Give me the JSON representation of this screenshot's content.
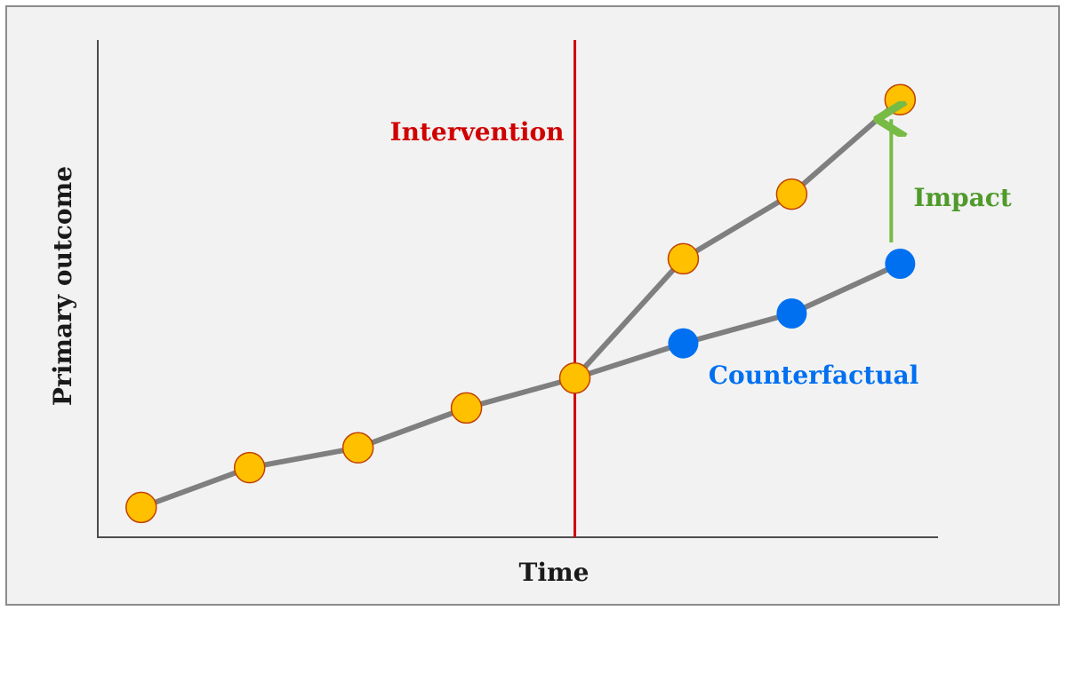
{
  "chart_data": {
    "type": "line",
    "title": "",
    "xlabel": "Time",
    "ylabel": "Primary outcome",
    "grid": false,
    "x": [
      1,
      2,
      3,
      4,
      5,
      6,
      7,
      8
    ],
    "xlim": [
      0.6,
      8.35
    ],
    "ylim": [
      0,
      10
    ],
    "series": [
      {
        "values": [
          0.6,
          1.4,
          1.8,
          2.6,
          3.2,
          5.6,
          6.9,
          8.8
        ],
        "color": "#ffc000"
      },
      {
        "name": "Counterfactual",
        "values": [
          null,
          null,
          null,
          null,
          3.2,
          3.9,
          4.5,
          5.5
        ],
        "color": "#0070f0"
      }
    ],
    "intervention": {
      "x": 5,
      "label": "Intervention",
      "color": "#d00000"
    },
    "impact": {
      "x": 8,
      "from": 5.5,
      "to": 8.8,
      "label": "Impact",
      "color": "#77bb44"
    },
    "line_color": "#7f7f7f",
    "marker_edge_color": "#c04000"
  }
}
